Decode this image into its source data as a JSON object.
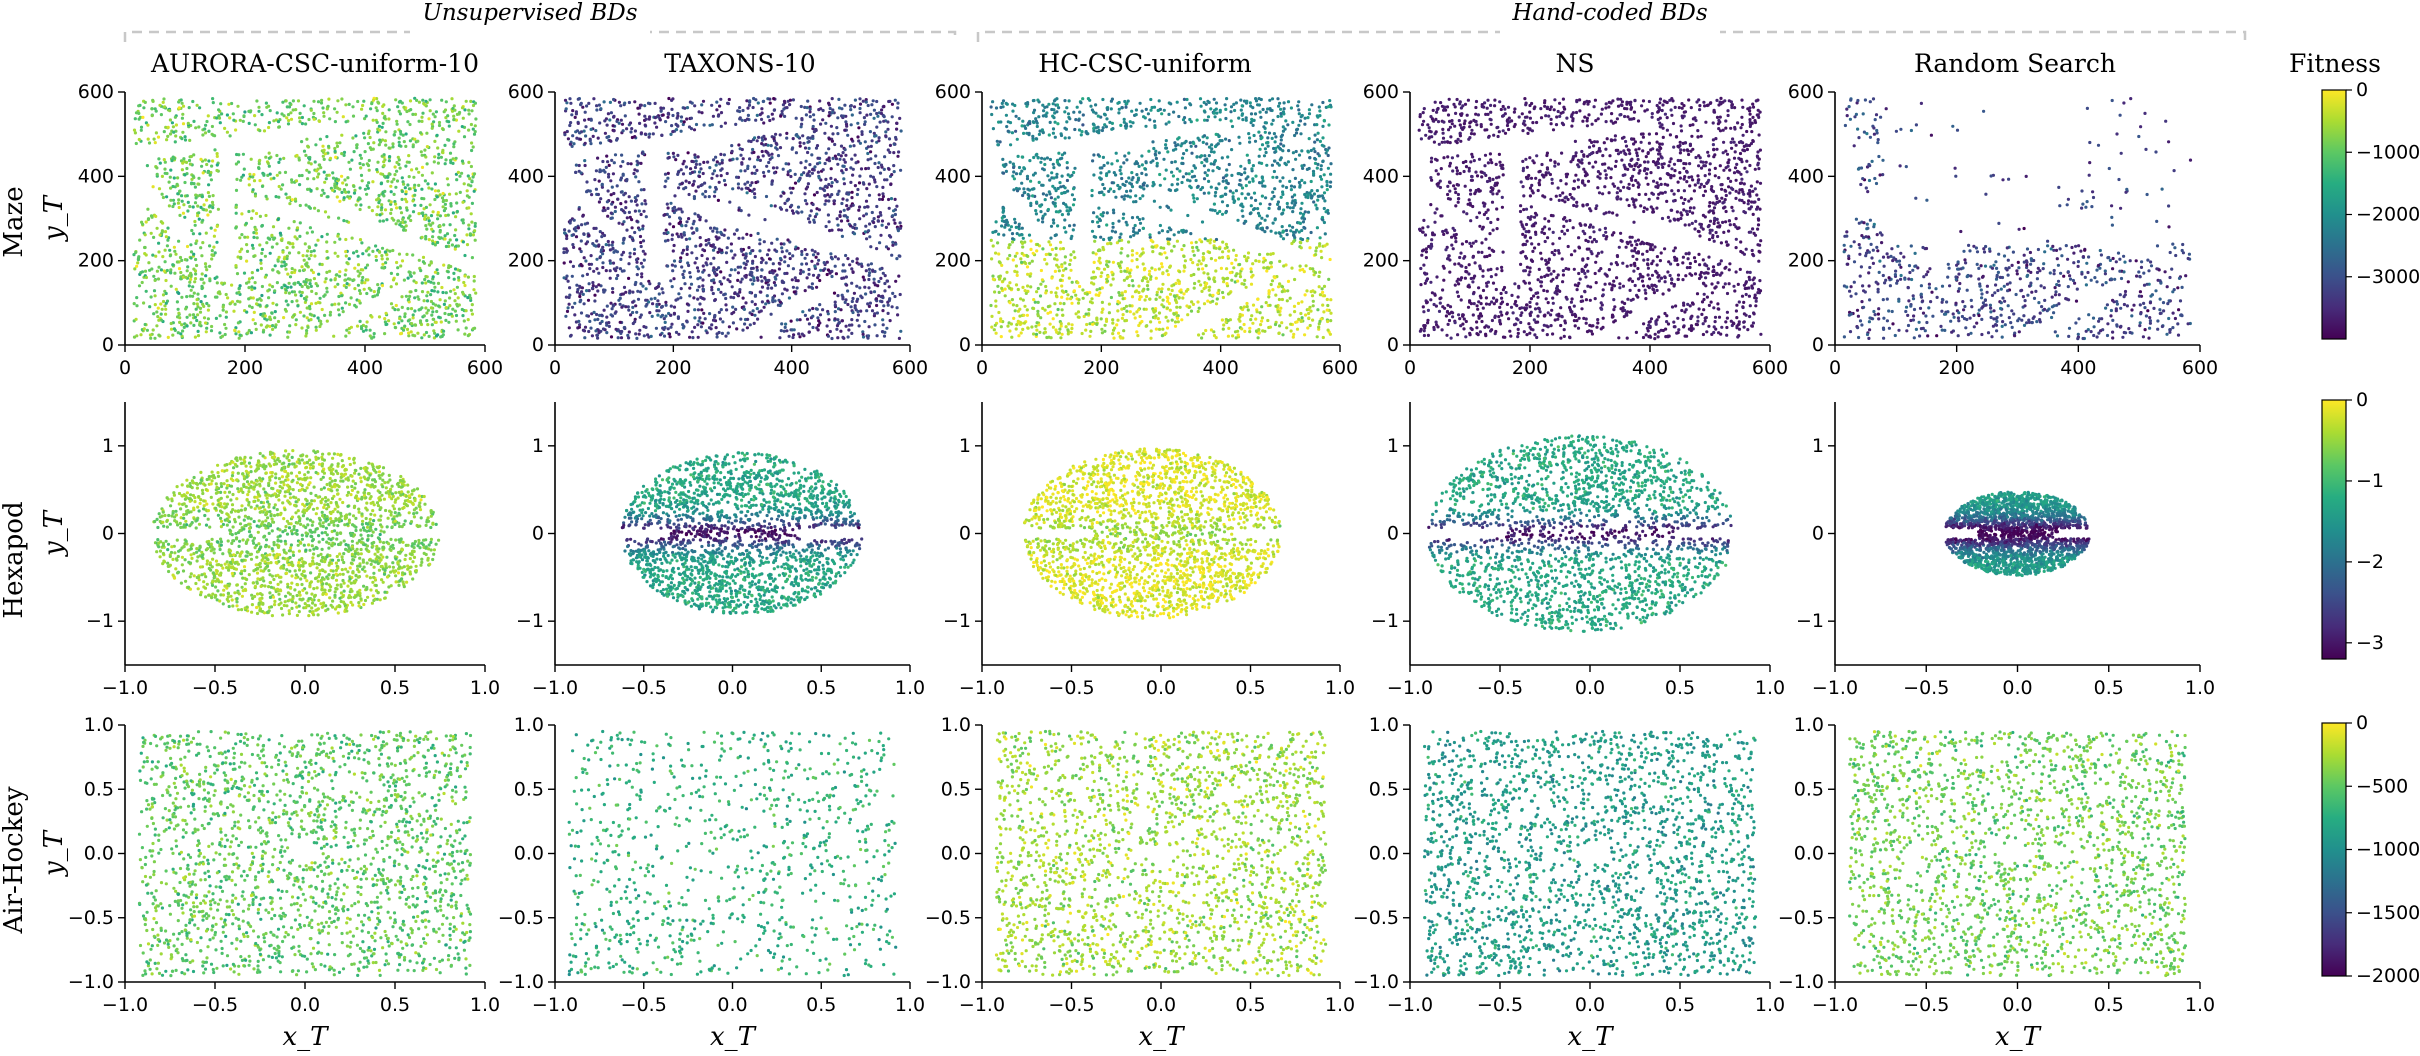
{
  "figure": {
    "group_labels": [
      "Unsupervised BDs",
      "Hand-coded BDs"
    ],
    "column_titles": [
      "AURORA-CSC-uniform-10",
      "TAXONS-10",
      "HC-CSC-uniform",
      "NS",
      "Random Search"
    ],
    "row_labels": [
      "Maze",
      "Hexapod",
      "Air-Hockey"
    ],
    "x_axis_label": "x_T",
    "y_axis_label": "y_T",
    "colorbar_title": "Fitness"
  },
  "chart_data": {
    "type": "scatter",
    "colormap": "viridis",
    "colormap_stops": [
      "#440154",
      "#472c7a",
      "#3b518b",
      "#2c718e",
      "#21908d",
      "#27ad81",
      "#5cc863",
      "#aadc32",
      "#fde725"
    ],
    "rows": [
      {
        "name": "Maze",
        "xlim": [
          0,
          600
        ],
        "ylim": [
          0,
          600
        ],
        "xticks": [
          "0",
          "200",
          "400",
          "600"
        ],
        "yticks": [
          "0",
          "200",
          "400",
          "600"
        ],
        "colorbar": {
          "min": -4000,
          "max": 0,
          "ticks": [
            "0",
            "−1000",
            "−2000",
            "−3000"
          ]
        },
        "panels": [
          {
            "method": "AURORA-CSC-uniform-10",
            "x_range": [
              15,
              585
            ],
            "y_range": [
              15,
              585
            ],
            "mean_fitness_fraction": 0.78
          },
          {
            "method": "TAXONS-10",
            "x_range": [
              15,
              585
            ],
            "y_range": [
              15,
              585
            ],
            "mean_fitness_fraction": 0.18
          },
          {
            "method": "HC-CSC-uniform",
            "x_range": [
              15,
              585
            ],
            "y_range": [
              15,
              585
            ],
            "mean_fitness_fraction": 0.7
          },
          {
            "method": "NS",
            "x_range": [
              15,
              585
            ],
            "y_range": [
              15,
              585
            ],
            "mean_fitness_fraction": 0.05
          },
          {
            "method": "Random Search",
            "x_range": [
              15,
              585
            ],
            "y_range": [
              15,
              585
            ],
            "mean_fitness_fraction": 0.2
          }
        ]
      },
      {
        "name": "Hexapod",
        "xlim": [
          -1.0,
          1.0
        ],
        "ylim": [
          -1.5,
          1.5
        ],
        "xticks": [
          "−1.0",
          "−0.5",
          "0.0",
          "0.5",
          "1.0"
        ],
        "yticks": [
          "−1",
          "0",
          "1"
        ],
        "colorbar": {
          "min": -3.2,
          "max": 0,
          "ticks": [
            "0",
            "−1",
            "−2",
            "−3"
          ]
        },
        "panels": [
          {
            "method": "AURORA-CSC-uniform-10",
            "center": [
              -0.05,
              0.0
            ],
            "radii": [
              0.8,
              0.95
            ],
            "mean_fitness_fraction": 0.85
          },
          {
            "method": "TAXONS-10",
            "center": [
              0.05,
              0.0
            ],
            "radii": [
              0.68,
              0.92
            ],
            "mean_fitness_fraction": 0.6
          },
          {
            "method": "HC-CSC-uniform",
            "center": [
              -0.05,
              0.0
            ],
            "radii": [
              0.72,
              0.97
            ],
            "mean_fitness_fraction": 0.95
          },
          {
            "method": "NS",
            "center": [
              -0.05,
              0.0
            ],
            "radii": [
              0.85,
              1.12
            ],
            "mean_fitness_fraction": 0.6
          },
          {
            "method": "Random Search",
            "center": [
              0.0,
              0.0
            ],
            "radii": [
              0.4,
              0.48
            ],
            "mean_fitness_fraction": 0.55
          }
        ]
      },
      {
        "name": "Air-Hockey",
        "xlim": [
          -1.0,
          1.0
        ],
        "ylim": [
          -1.0,
          1.0
        ],
        "xticks": [
          "−1.0",
          "−0.5",
          "0.0",
          "0.5",
          "1.0"
        ],
        "yticks": [
          "−1.0",
          "−0.5",
          "0.0",
          "0.5",
          "1.0"
        ],
        "colorbar": {
          "min": -2000,
          "max": 0,
          "ticks": [
            "0",
            "−500",
            "−1000",
            "−1500",
            "−2000"
          ]
        },
        "panels": [
          {
            "method": "AURORA-CSC-uniform-10",
            "x_range": [
              -0.92,
              0.92
            ],
            "y_range": [
              -0.95,
              0.95
            ],
            "mean_fitness_fraction": 0.75
          },
          {
            "method": "TAXONS-10",
            "x_range": [
              -0.92,
              0.92
            ],
            "y_range": [
              -0.95,
              0.95
            ],
            "mean_fitness_fraction": 0.65
          },
          {
            "method": "HC-CSC-uniform",
            "x_range": [
              -0.92,
              0.92
            ],
            "y_range": [
              -0.95,
              0.95
            ],
            "mean_fitness_fraction": 0.85
          },
          {
            "method": "NS",
            "x_range": [
              -0.92,
              0.92
            ],
            "y_range": [
              -0.95,
              0.95
            ],
            "mean_fitness_fraction": 0.55
          },
          {
            "method": "Random Search",
            "x_range": [
              -0.92,
              0.92
            ],
            "y_range": [
              -0.95,
              0.95
            ],
            "mean_fitness_fraction": 0.78
          }
        ]
      }
    ]
  }
}
